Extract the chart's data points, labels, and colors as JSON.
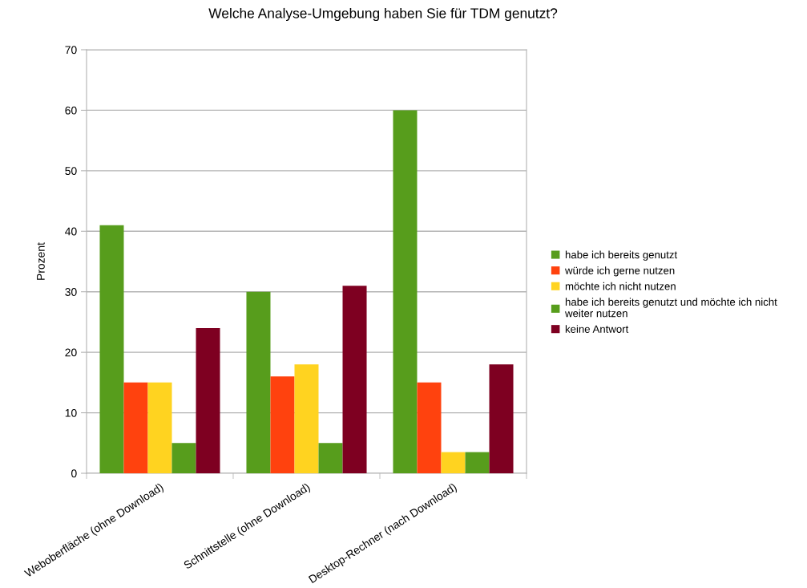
{
  "chart_data": {
    "type": "bar",
    "title": "Welche Analyse-Umgebung haben Sie für TDM genutzt?",
    "ylabel": "Prozent",
    "categories": [
      "Weboberfläche (ohne Download)",
      "Schnittstelle (ohne Download)",
      "Desktop-Rechner (nach Download)"
    ],
    "series": [
      {
        "name": "habe ich bereits genutzt",
        "color": "#579d1c",
        "values": [
          41,
          30,
          60
        ]
      },
      {
        "name": "würde ich gerne nutzen",
        "color": "#ff420e",
        "values": [
          15,
          16,
          15
        ]
      },
      {
        "name": "möchte ich nicht nutzen",
        "color": "#ffd320",
        "values": [
          15,
          18,
          3.5
        ]
      },
      {
        "name": "habe ich bereits genutzt und möchte ich nicht weiter nutzen",
        "color": "#579d1c",
        "values": [
          5,
          5,
          3.5
        ]
      },
      {
        "name": "keine Antwort",
        "color": "#7e0021",
        "values": [
          24,
          31,
          18
        ]
      }
    ],
    "ylim": [
      0,
      70
    ],
    "yticks": [
      0,
      10,
      20,
      30,
      40,
      50,
      60,
      70
    ],
    "grid": "y",
    "legend": "right"
  }
}
